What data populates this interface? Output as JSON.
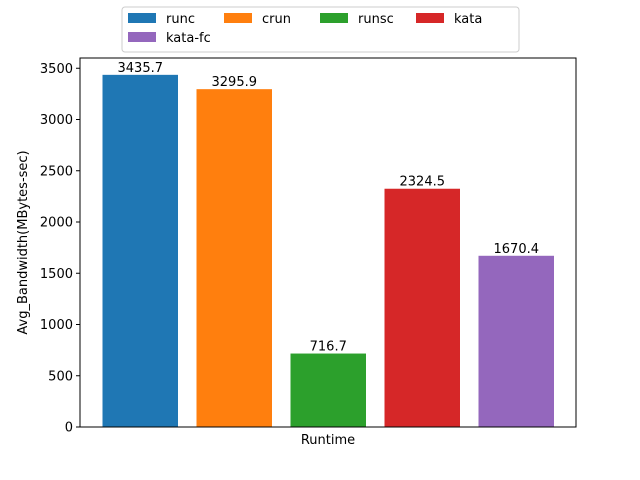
{
  "chart_data": {
    "type": "bar",
    "categories": [
      "runc",
      "crun",
      "runsc",
      "kata",
      "kata-fc"
    ],
    "values": [
      3435.7,
      3295.9,
      716.7,
      2324.5,
      1670.4
    ],
    "value_labels": [
      "3435.7",
      "3295.9",
      "716.7",
      "2324.5",
      "1670.4"
    ],
    "colors": [
      "#1f77b4",
      "#ff7f0e",
      "#2ca02c",
      "#d62728",
      "#9467bd"
    ],
    "title": "",
    "xlabel": "Runtime",
    "ylabel": "Avg_Bandwidth(MBytes-sec)",
    "ylim": [
      0,
      3600
    ],
    "yticks": [
      0,
      500,
      1000,
      1500,
      2000,
      2500,
      3000,
      3500
    ],
    "grid": false,
    "legend": {
      "placement": "top-center",
      "entries": [
        "runc",
        "crun",
        "runsc",
        "kata",
        "kata-fc"
      ]
    }
  }
}
